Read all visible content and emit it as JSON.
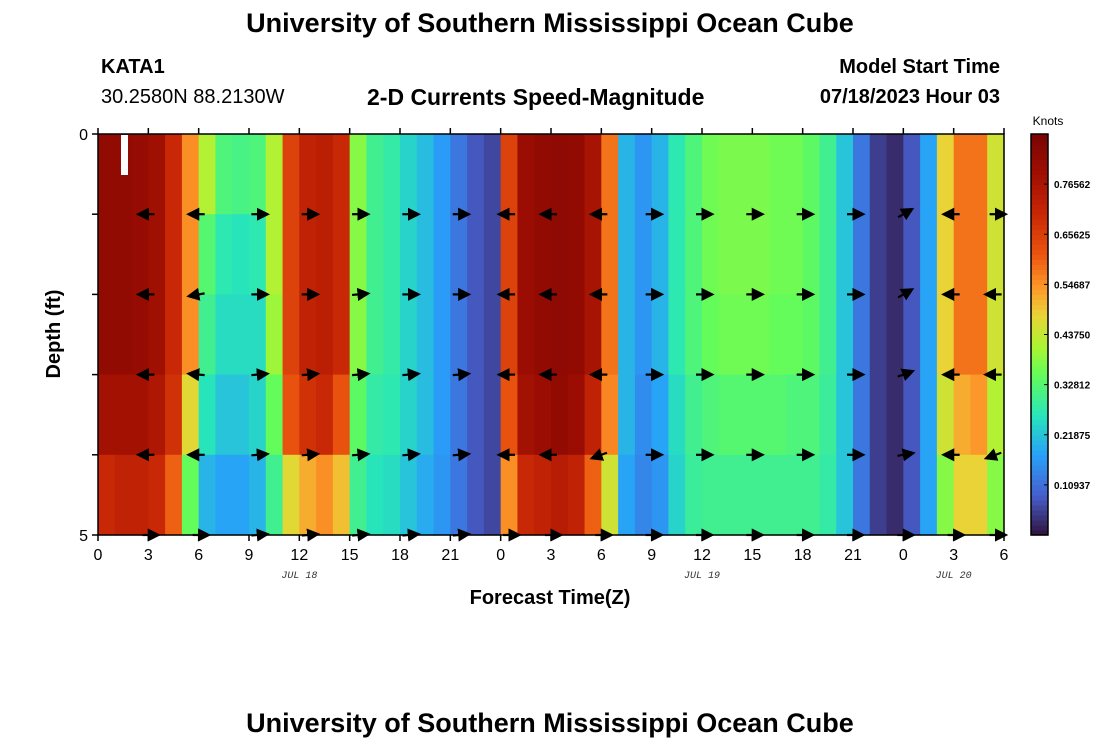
{
  "header": {
    "title": "University of Southern Mississippi Ocean Cube",
    "station_id": "KATA1",
    "coords": "30.2580N  88.2130W",
    "subtitle": "2-D Currents Speed-Magnitude",
    "model_start_label": "Model Start Time",
    "model_start_value": "07/18/2023 Hour 03"
  },
  "footer": {
    "title": "University of Southern Mississippi Ocean Cube"
  },
  "chart_data": {
    "type": "heatmap",
    "title": "2-D Currents Speed-Magnitude",
    "xlabel": "Forecast Time(Z)",
    "ylabel": "Depth (ft)",
    "colorbar_label": "Knots",
    "xlim": [
      0,
      54
    ],
    "ylim": [
      0,
      5
    ],
    "x_ticks": [
      0,
      3,
      6,
      9,
      12,
      15,
      18,
      21,
      24,
      27,
      30,
      33,
      36,
      39,
      42,
      45,
      48,
      51,
      54
    ],
    "x_tick_labels": [
      "0",
      "3",
      "6",
      "9",
      "12",
      "15",
      "18",
      "21",
      "0",
      "3",
      "6",
      "9",
      "12",
      "15",
      "18",
      "21",
      "0",
      "3",
      "6"
    ],
    "date_labels": [
      {
        "label": "JUL 18",
        "x": 12
      },
      {
        "label": "JUL 19",
        "x": 36
      },
      {
        "label": "JUL 20",
        "x": 51
      }
    ],
    "y_tick_labels": [
      "0",
      "5"
    ],
    "y_ticks": [
      0,
      1,
      2,
      3,
      4,
      5
    ],
    "colorbar_ticks": [
      0.10937,
      0.21875,
      0.328125,
      0.4375,
      0.546875,
      0.65625,
      0.765625
    ],
    "colorbar_tick_labels": [
      "0.10937",
      "0.21875",
      "0.32812",
      "0.43750",
      "0.54687",
      "0.65625",
      "0.76562"
    ],
    "colorbar_range": [
      0,
      0.875
    ],
    "depth_bands": [
      0,
      1,
      2,
      3,
      4,
      5
    ],
    "time_hours": [
      0,
      1,
      2,
      3,
      4,
      5,
      6,
      7,
      8,
      9,
      10,
      11,
      12,
      13,
      14,
      15,
      16,
      17,
      18,
      19,
      20,
      21,
      22,
      23,
      24,
      25,
      26,
      27,
      28,
      29,
      30,
      31,
      32,
      33,
      34,
      35,
      36,
      37,
      38,
      39,
      40,
      41,
      42,
      43,
      44,
      45,
      46,
      47,
      48,
      49,
      50,
      51,
      52,
      53
    ],
    "speed_knots": [
      [
        0.82,
        0.82,
        0.81,
        0.79,
        0.7,
        0.55,
        0.42,
        0.32,
        0.31,
        0.32,
        0.42,
        0.65,
        0.72,
        0.73,
        0.7,
        0.38,
        0.3,
        0.28,
        0.24,
        0.21,
        0.17,
        0.12,
        0.08,
        0.06,
        0.65,
        0.8,
        0.82,
        0.83,
        0.82,
        0.77,
        0.58,
        0.2,
        0.16,
        0.2,
        0.27,
        0.32,
        0.36,
        0.37,
        0.37,
        0.37,
        0.36,
        0.36,
        0.34,
        0.3,
        0.22,
        0.12,
        0.05,
        0.03,
        0.08,
        0.18,
        0.48,
        0.58,
        0.58,
        0.45
      ],
      [
        0.82,
        0.82,
        0.81,
        0.79,
        0.7,
        0.55,
        0.33,
        0.27,
        0.26,
        0.27,
        0.42,
        0.65,
        0.72,
        0.73,
        0.7,
        0.38,
        0.3,
        0.28,
        0.24,
        0.21,
        0.17,
        0.12,
        0.08,
        0.06,
        0.65,
        0.8,
        0.82,
        0.83,
        0.82,
        0.77,
        0.58,
        0.2,
        0.16,
        0.2,
        0.27,
        0.32,
        0.36,
        0.37,
        0.37,
        0.37,
        0.36,
        0.36,
        0.34,
        0.3,
        0.22,
        0.12,
        0.05,
        0.03,
        0.08,
        0.18,
        0.48,
        0.58,
        0.58,
        0.45
      ],
      [
        0.82,
        0.82,
        0.81,
        0.79,
        0.7,
        0.55,
        0.3,
        0.25,
        0.25,
        0.25,
        0.4,
        0.65,
        0.72,
        0.73,
        0.7,
        0.38,
        0.3,
        0.28,
        0.24,
        0.21,
        0.17,
        0.12,
        0.08,
        0.06,
        0.65,
        0.8,
        0.82,
        0.83,
        0.82,
        0.77,
        0.58,
        0.2,
        0.16,
        0.2,
        0.27,
        0.32,
        0.35,
        0.36,
        0.36,
        0.36,
        0.35,
        0.35,
        0.34,
        0.3,
        0.22,
        0.12,
        0.05,
        0.03,
        0.08,
        0.18,
        0.48,
        0.58,
        0.58,
        0.45
      ],
      [
        0.78,
        0.78,
        0.78,
        0.76,
        0.68,
        0.47,
        0.26,
        0.22,
        0.22,
        0.24,
        0.35,
        0.62,
        0.68,
        0.7,
        0.62,
        0.34,
        0.28,
        0.27,
        0.24,
        0.21,
        0.17,
        0.12,
        0.08,
        0.06,
        0.62,
        0.78,
        0.8,
        0.82,
        0.8,
        0.72,
        0.56,
        0.2,
        0.15,
        0.18,
        0.25,
        0.3,
        0.32,
        0.33,
        0.33,
        0.33,
        0.33,
        0.32,
        0.32,
        0.29,
        0.22,
        0.12,
        0.05,
        0.03,
        0.08,
        0.18,
        0.45,
        0.52,
        0.54,
        0.42
      ],
      [
        0.7,
        0.72,
        0.72,
        0.7,
        0.6,
        0.35,
        0.2,
        0.18,
        0.18,
        0.2,
        0.3,
        0.47,
        0.52,
        0.55,
        0.5,
        0.3,
        0.26,
        0.25,
        0.22,
        0.19,
        0.16,
        0.12,
        0.08,
        0.06,
        0.55,
        0.7,
        0.72,
        0.74,
        0.72,
        0.6,
        0.45,
        0.18,
        0.14,
        0.16,
        0.24,
        0.29,
        0.3,
        0.3,
        0.3,
        0.3,
        0.3,
        0.3,
        0.3,
        0.28,
        0.22,
        0.12,
        0.05,
        0.03,
        0.08,
        0.18,
        0.38,
        0.48,
        0.48,
        0.38
      ]
    ],
    "direction_vectors": {
      "columns": [
        3,
        6,
        9.5,
        12.5,
        15.5,
        18.5,
        21.5,
        24.5,
        27,
        30,
        33,
        36,
        39,
        42,
        45,
        48,
        51,
        53.5
      ],
      "angles_deg": [
        [
          180,
          180,
          0,
          0,
          0,
          0,
          0,
          180,
          180,
          180,
          0,
          0,
          0,
          0,
          0,
          30,
          180,
          0
        ],
        [
          180,
          190,
          0,
          0,
          5,
          0,
          0,
          180,
          180,
          180,
          0,
          0,
          0,
          0,
          0,
          30,
          180,
          180
        ],
        [
          180,
          175,
          5,
          5,
          5,
          5,
          5,
          180,
          180,
          180,
          0,
          0,
          0,
          0,
          0,
          20,
          180,
          180
        ],
        [
          180,
          180,
          5,
          5,
          5,
          5,
          5,
          180,
          180,
          200,
          0,
          0,
          0,
          0,
          0,
          10,
          180,
          200
        ],
        [
          0,
          0,
          5,
          5,
          5,
          5,
          5,
          0,
          0,
          0,
          0,
          0,
          0,
          0,
          0,
          0,
          0,
          0
        ]
      ]
    }
  }
}
